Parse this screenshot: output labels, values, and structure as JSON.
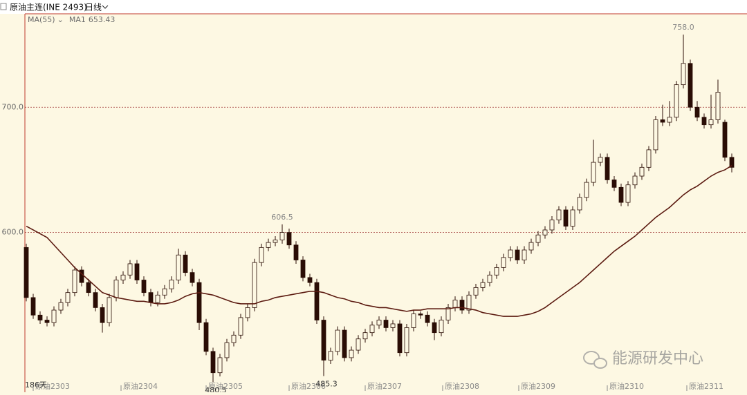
{
  "header": {
    "symbol": "原油主连(INE 2493)",
    "period": "日线"
  },
  "chart_data": {
    "type": "candlestick",
    "indicator": "MA(55)",
    "ma_name": "MA1",
    "open": [
      588,
      548,
      534,
      530,
      528,
      538,
      544,
      552,
      570,
      560,
      552,
      540,
      528,
      548,
      562,
      566,
      575,
      562,
      552,
      544,
      550,
      555,
      562,
      582,
      568,
      560,
      528,
      505,
      488,
      500,
      512,
      518,
      532,
      540,
      576,
      588,
      592,
      594,
      600,
      590,
      578,
      564,
      560,
      530,
      498,
      505,
      522,
      500,
      506,
      515,
      520,
      526,
      530,
      524,
      527,
      504,
      524,
      535,
      534,
      528,
      520,
      530,
      540,
      546,
      538,
      550,
      556,
      560,
      566,
      572,
      580,
      586,
      578,
      586,
      592,
      598,
      602,
      610,
      618,
      605,
      618,
      628,
      640,
      656,
      660,
      642,
      636,
      624,
      638,
      645,
      652,
      666,
      690,
      688,
      692,
      718,
      735,
      700,
      692,
      686,
      690,
      688,
      660
    ],
    "high": [
      591,
      551,
      537,
      533,
      541,
      547,
      555,
      573,
      573,
      563,
      555,
      543,
      551,
      565,
      569,
      578,
      578,
      565,
      555,
      553,
      558,
      565,
      587,
      585,
      571,
      563,
      531,
      508,
      503,
      515,
      521,
      535,
      543,
      579,
      591,
      595,
      597,
      606.5,
      603,
      593,
      581,
      567,
      563,
      533,
      508,
      525,
      525,
      509,
      518,
      523,
      529,
      533,
      533,
      530,
      530,
      527,
      538,
      537,
      537,
      531,
      533,
      543,
      549,
      549,
      553,
      559,
      563,
      569,
      575,
      583,
      589,
      589,
      589,
      595,
      601,
      605,
      613,
      621,
      621,
      621,
      631,
      643,
      674,
      663,
      663,
      645,
      639,
      641,
      648,
      655,
      669,
      693,
      702,
      705,
      721,
      758,
      738,
      705,
      695,
      710,
      722,
      690,
      663
    ],
    "low": [
      545,
      531,
      527,
      525,
      525,
      535,
      541,
      549,
      557,
      549,
      537,
      520,
      525,
      545,
      559,
      563,
      559,
      549,
      541,
      541,
      547,
      552,
      559,
      565,
      557,
      522,
      502,
      480.5,
      485,
      497,
      509,
      515,
      529,
      537,
      573,
      585,
      589,
      591,
      587,
      575,
      561,
      557,
      527,
      485.3,
      495,
      502,
      497,
      497,
      503,
      512,
      517,
      523,
      521,
      521,
      501,
      501,
      521,
      531,
      525,
      514,
      517,
      527,
      537,
      535,
      535,
      547,
      553,
      557,
      563,
      569,
      577,
      575,
      575,
      583,
      589,
      595,
      599,
      607,
      602,
      602,
      615,
      625,
      637,
      653,
      639,
      633,
      621,
      621,
      635,
      642,
      649,
      663,
      685,
      685,
      689,
      715,
      697,
      689,
      683,
      683,
      687,
      657,
      648
    ],
    "close": [
      548,
      534,
      530,
      528,
      538,
      544,
      552,
      570,
      560,
      552,
      540,
      528,
      548,
      562,
      566,
      575,
      562,
      552,
      544,
      550,
      555,
      562,
      582,
      568,
      560,
      528,
      505,
      488,
      500,
      512,
      518,
      532,
      540,
      576,
      588,
      592,
      594,
      600,
      590,
      578,
      564,
      560,
      530,
      498,
      505,
      522,
      500,
      506,
      515,
      520,
      526,
      530,
      524,
      527,
      504,
      524,
      535,
      534,
      528,
      520,
      530,
      540,
      546,
      538,
      550,
      556,
      560,
      566,
      572,
      580,
      586,
      578,
      586,
      592,
      598,
      602,
      610,
      618,
      605,
      618,
      628,
      640,
      656,
      660,
      642,
      636,
      624,
      638,
      645,
      652,
      666,
      690,
      688,
      692,
      718,
      735,
      700,
      692,
      686,
      690,
      712,
      660,
      652
    ],
    "ma": [
      605,
      602,
      599,
      596,
      590,
      584,
      578,
      572,
      567,
      562,
      557,
      552,
      550,
      548,
      547,
      546,
      545,
      545,
      544,
      543,
      543,
      544,
      546,
      549,
      551,
      552,
      551,
      550,
      548,
      546,
      544,
      543,
      543,
      543,
      545,
      546,
      548,
      549,
      550,
      551,
      552,
      553,
      553,
      552,
      550,
      548,
      547,
      545,
      544,
      542,
      541,
      540,
      540,
      539,
      538,
      537,
      538,
      538,
      539,
      539,
      539,
      539,
      540,
      540,
      539,
      538,
      536,
      535,
      534,
      533,
      533,
      533,
      534,
      535,
      537,
      540,
      544,
      548,
      552,
      556,
      560,
      565,
      570,
      575,
      580,
      585,
      589,
      593,
      597,
      602,
      607,
      612,
      616,
      620,
      625,
      630,
      634,
      637,
      641,
      645,
      648,
      650,
      653.43
    ],
    "up_color": "#2a0d05",
    "down_color": "#2a0d05",
    "ma_color": "#5b1a10",
    "xlim": [
      -0.2,
      104.2
    ],
    "ylim": [
      473.5,
      774.6
    ],
    "yticks": [
      {
        "value": 600,
        "label": "600.0"
      },
      {
        "value": 700,
        "label": "700.0"
      }
    ],
    "xticks": [
      {
        "value": 1,
        "label": "原油2303"
      },
      {
        "value": 13.7,
        "label": "原油2304"
      },
      {
        "value": 26,
        "label": "原油2305"
      },
      {
        "value": 38,
        "label": "原油2306"
      },
      {
        "value": 49,
        "label": "原油2307"
      },
      {
        "value": 60.2,
        "label": "原油2308"
      },
      {
        "value": 71.2,
        "label": "原油2309"
      },
      {
        "value": 84,
        "label": "原油2310"
      },
      {
        "value": 95.5,
        "label": "原油2311"
      }
    ],
    "grid": true,
    "annotations": [
      {
        "value": 758,
        "label": "758.0"
      },
      {
        "value": 606.5,
        "label": "606.5"
      },
      {
        "value": 485.3,
        "label": "485.3"
      },
      {
        "value": 480.5,
        "label": "480.5"
      }
    ],
    "days": "186天"
  },
  "watermark": "能源研发中心"
}
